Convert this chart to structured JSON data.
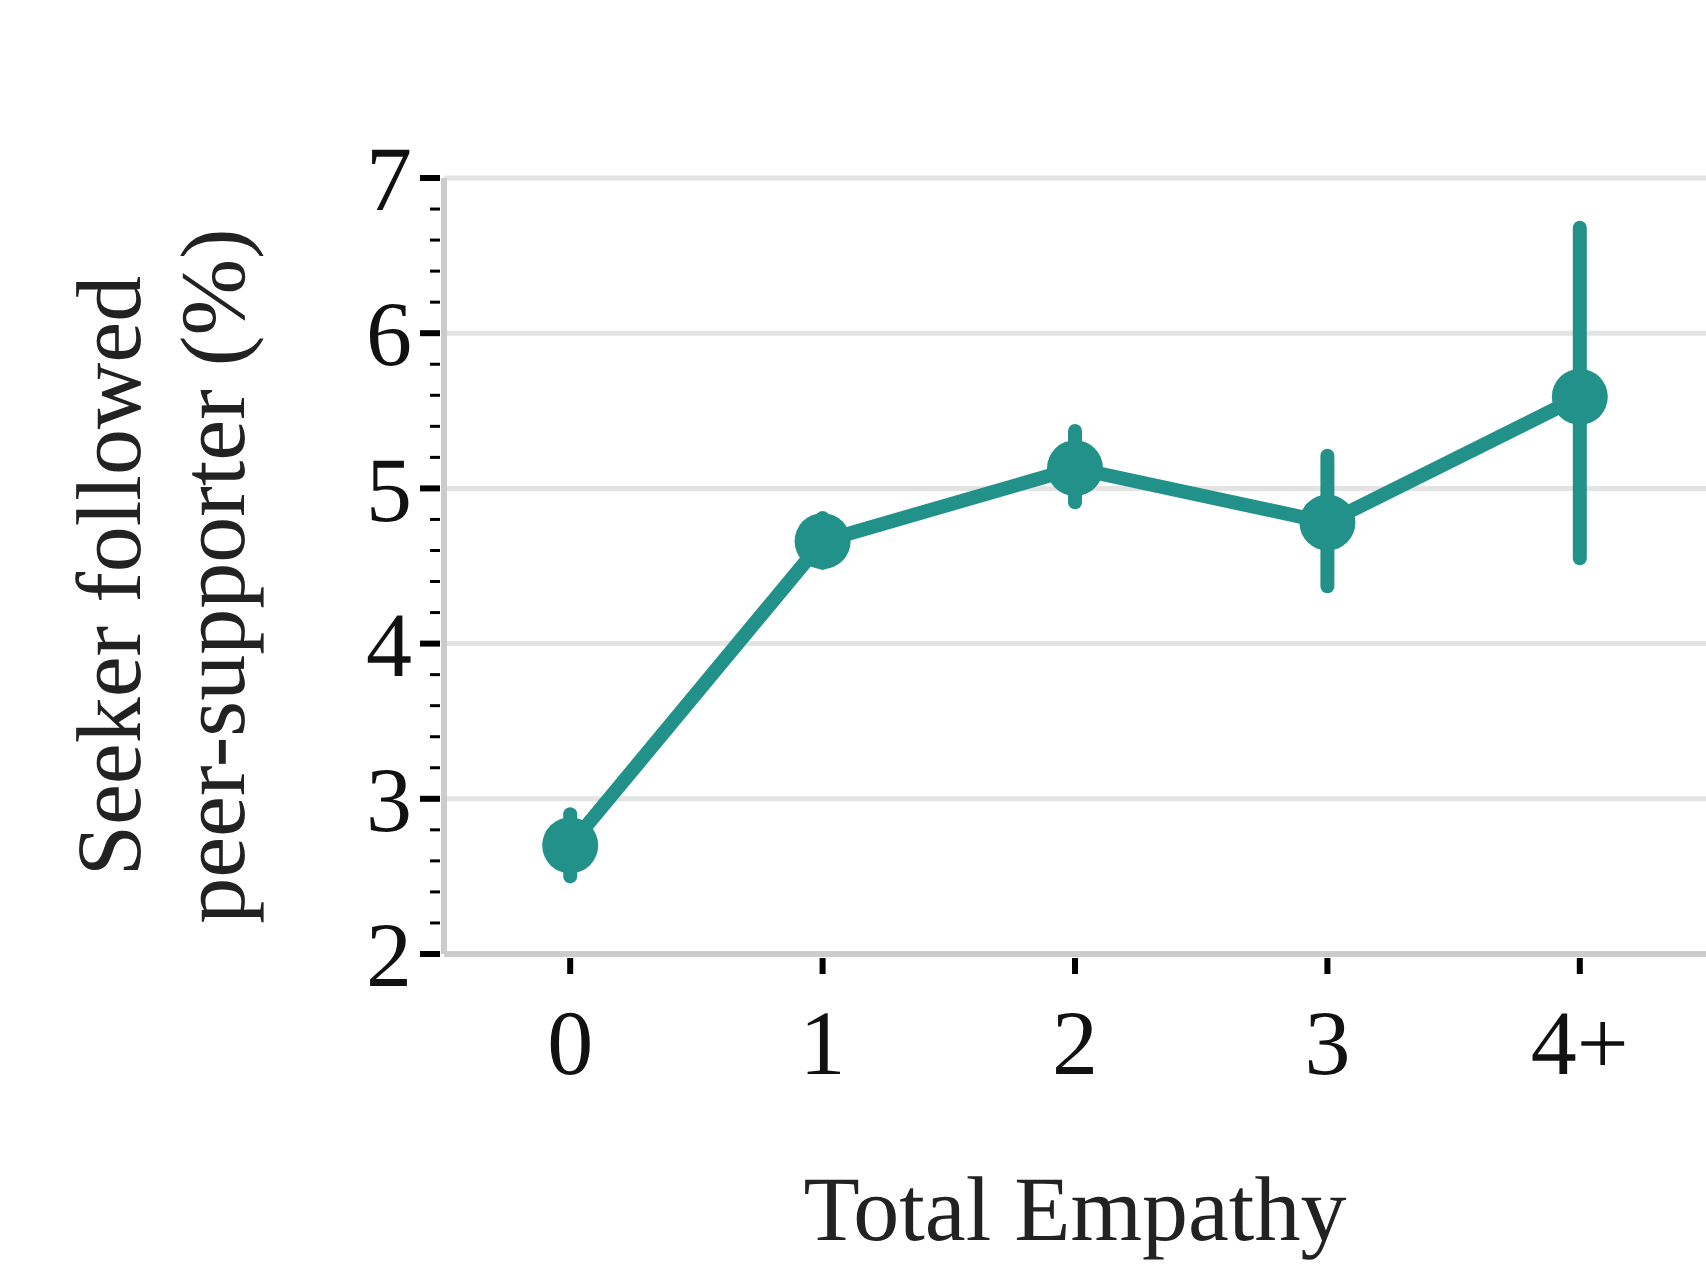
{
  "chart_data": {
    "type": "line",
    "xlabel": "Total Empathy",
    "ylabel": "Seeker followed\npeer-supporter (%)",
    "categories": [
      "0",
      "1",
      "2",
      "3",
      "4+"
    ],
    "series": [
      {
        "color": "#22918a",
        "values": [
          2.7,
          4.66,
          5.13,
          4.78,
          5.59
        ],
        "errors": [
          [
            2.5,
            2.9
          ],
          [
            4.52,
            4.81
          ],
          [
            4.91,
            5.37
          ],
          [
            4.37,
            5.21
          ],
          [
            4.55,
            6.68
          ]
        ]
      }
    ],
    "ylim": [
      2,
      7
    ],
    "yticks": [
      2,
      {
        "value": 2.2,
        "label": null
      },
      {
        "value": 2.4,
        "label": null
      },
      {
        "value": 2.6,
        "label": null
      },
      {
        "value": 2.8,
        "label": null
      },
      3,
      {
        "value": 3.2,
        "label": null
      },
      {
        "value": 3.4,
        "label": null
      },
      {
        "value": 3.6,
        "label": null
      },
      {
        "value": 3.8,
        "label": null
      },
      4,
      {
        "value": 4.2,
        "label": null
      },
      {
        "value": 4.4,
        "label": null
      },
      {
        "value": 4.6,
        "label": null
      },
      {
        "value": 4.8,
        "label": null
      },
      5,
      {
        "value": 5.2,
        "label": null
      },
      {
        "value": 5.4,
        "label": null
      },
      {
        "value": 5.6,
        "label": null
      },
      {
        "value": 5.8,
        "label": null
      },
      6,
      {
        "value": 6.2,
        "label": null
      },
      {
        "value": 6.4,
        "label": null
      },
      {
        "value": 6.6,
        "label": null
      },
      {
        "value": 6.8,
        "label": null
      },
      7
    ],
    "grid": "y",
    "marker": "circle",
    "line_style": "solid"
  }
}
